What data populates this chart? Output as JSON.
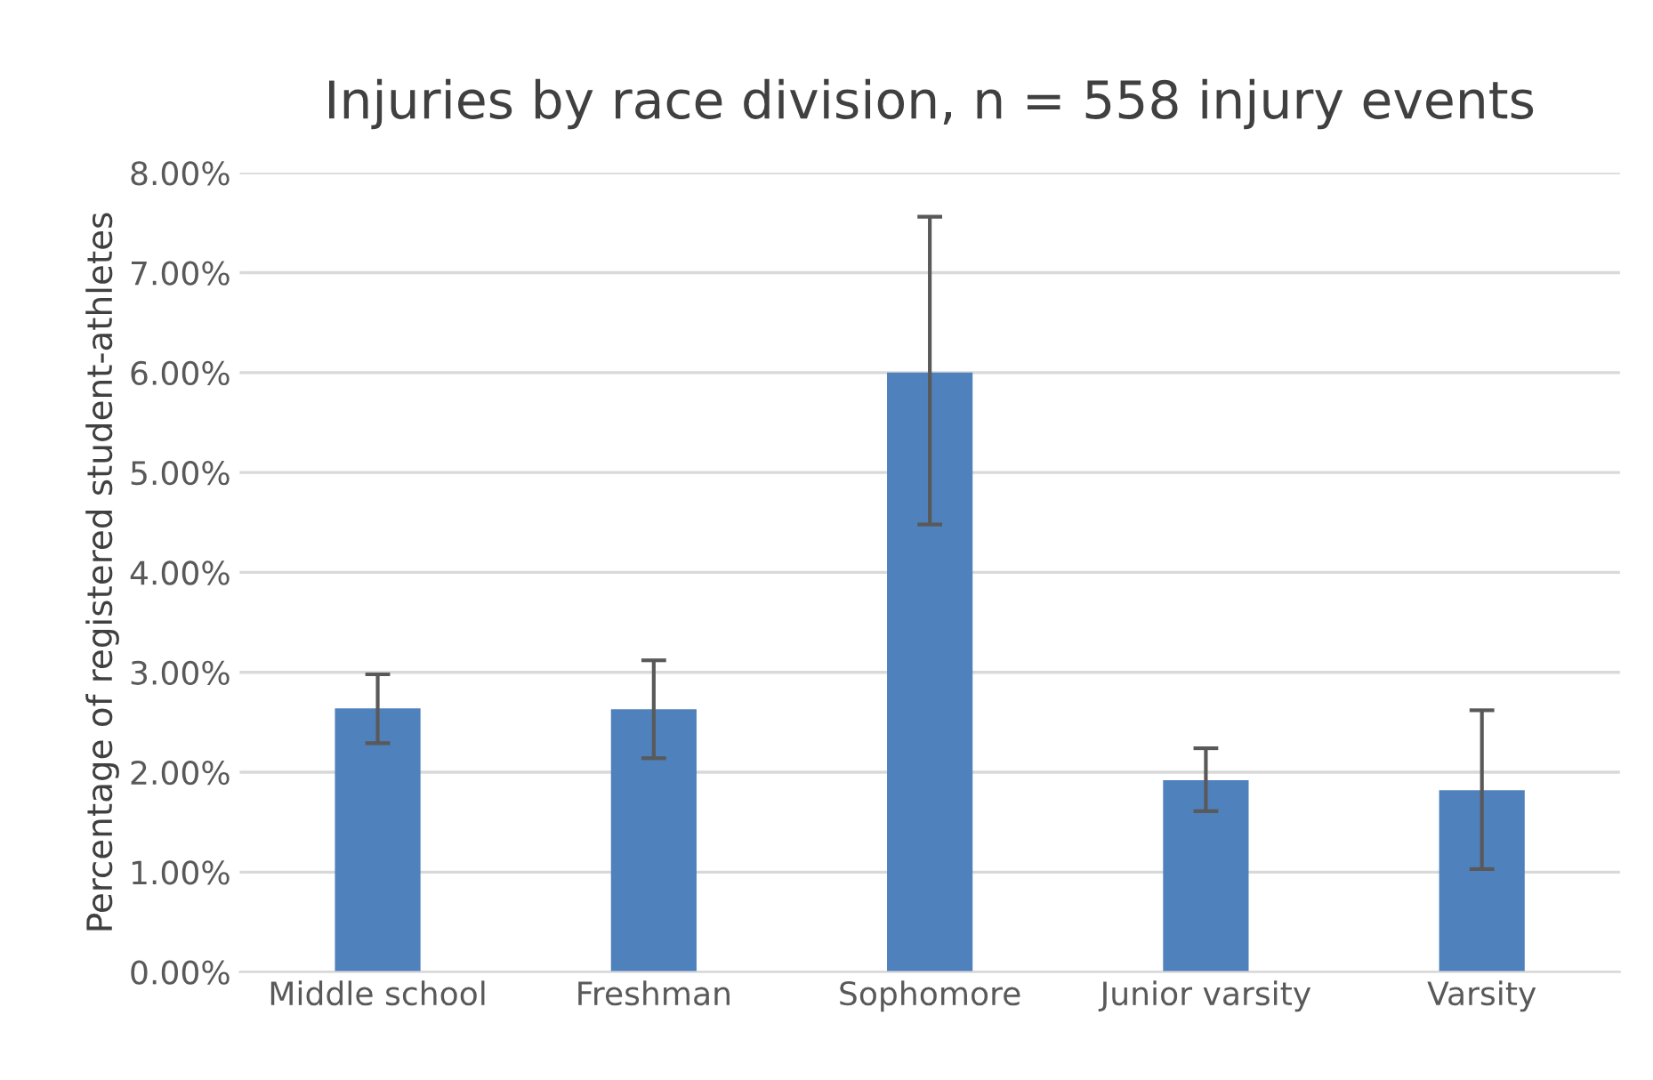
{
  "chart_data": {
    "type": "bar",
    "title": "Injuries by race division, n = 558 injury events",
    "ylabel": "Percentage of registered student-athletes",
    "categories": [
      "Middle school",
      "Freshman",
      "Sophomore",
      "Junior varsity",
      "Varsity"
    ],
    "values": [
      2.64,
      2.63,
      6.0,
      1.92,
      1.82
    ],
    "errors": [
      [
        2.29,
        2.98
      ],
      [
        2.14,
        3.12
      ],
      [
        4.48,
        7.56
      ],
      [
        1.61,
        2.24
      ],
      [
        1.03,
        2.62
      ]
    ],
    "color": "#4f81bd",
    "ylim": [
      0,
      8
    ],
    "yticks": [
      {
        "value": 0,
        "label": "0.00%"
      },
      {
        "value": 1,
        "label": "1.00%"
      },
      {
        "value": 2,
        "label": "2.00%"
      },
      {
        "value": 3,
        "label": "3.00%"
      },
      {
        "value": 4,
        "label": "4.00%"
      },
      {
        "value": 5,
        "label": "5.00%"
      },
      {
        "value": 6,
        "label": "6.00%"
      },
      {
        "value": 7,
        "label": "7.00%"
      },
      {
        "value": 8,
        "label": "8.00%"
      }
    ],
    "grid": "y"
  }
}
